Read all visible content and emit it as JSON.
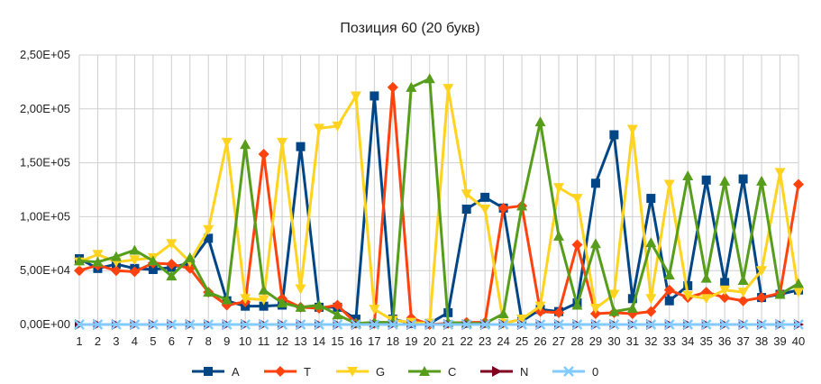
{
  "chart_data": {
    "type": "line",
    "title": "Позиция 60 (20 букв)",
    "xlabel": "",
    "ylabel": "",
    "x": [
      1,
      2,
      3,
      4,
      5,
      6,
      7,
      8,
      9,
      10,
      11,
      12,
      13,
      14,
      15,
      16,
      17,
      18,
      19,
      20,
      21,
      22,
      23,
      24,
      25,
      26,
      27,
      28,
      29,
      30,
      31,
      32,
      33,
      34,
      35,
      36,
      37,
      38,
      39,
      40
    ],
    "ylim": [
      0,
      250000
    ],
    "yticks": [
      0,
      50000,
      100000,
      150000,
      200000,
      250000
    ],
    "ytick_labels": [
      "0,00E+00",
      "5,00E+04",
      "1,00E+05",
      "1,50E+05",
      "2,00E+05",
      "2,50E+05"
    ],
    "grid": true,
    "legend_position": "bottom",
    "series": [
      {
        "name": "A",
        "color": "#004586",
        "marker": "square",
        "values": [
          61000,
          52000,
          56000,
          52000,
          51000,
          53000,
          57000,
          80000,
          22000,
          17000,
          17000,
          18000,
          165000,
          16000,
          16000,
          5000,
          212000,
          5000,
          1000,
          1000,
          11000,
          107000,
          118000,
          108000,
          3000,
          14000,
          12000,
          20000,
          131000,
          176000,
          24000,
          117000,
          22000,
          36000,
          134000,
          39000,
          135000,
          25000,
          28000,
          32000
        ]
      },
      {
        "name": "T",
        "color": "#ff420e",
        "marker": "diamond",
        "values": [
          50000,
          55000,
          50000,
          49000,
          57000,
          56000,
          52000,
          30000,
          18000,
          21000,
          158000,
          24000,
          16000,
          15000,
          18000,
          1000,
          1000,
          220000,
          6000,
          0,
          1000,
          2000,
          2000,
          108000,
          110000,
          12000,
          11000,
          74000,
          10000,
          11000,
          10000,
          12000,
          32000,
          25000,
          30000,
          25000,
          22000,
          25000,
          29000,
          130000
        ]
      },
      {
        "name": "G",
        "color": "#ffd320",
        "marker": "triangle-down",
        "values": [
          58000,
          65000,
          58000,
          60000,
          62000,
          75000,
          58000,
          88000,
          169000,
          24000,
          23000,
          169000,
          33000,
          182000,
          184000,
          212000,
          14000,
          4000,
          2000,
          1000,
          219000,
          121000,
          107000,
          1000,
          5000,
          17000,
          127000,
          117000,
          15000,
          28000,
          181000,
          24000,
          130000,
          27000,
          24000,
          32000,
          30000,
          50000,
          141000,
          30000
        ]
      },
      {
        "name": "C",
        "color": "#579d1c",
        "marker": "triangle-up",
        "values": [
          59000,
          58000,
          63000,
          69000,
          59000,
          45000,
          62000,
          30000,
          23000,
          167000,
          32000,
          20000,
          16000,
          18000,
          9000,
          1000,
          2000,
          2000,
          220000,
          228000,
          2000,
          1000,
          1000,
          10000,
          110000,
          188000,
          82000,
          18000,
          75000,
          12000,
          15000,
          76000,
          46000,
          138000,
          43000,
          133000,
          41000,
          133000,
          28000,
          38000
        ]
      },
      {
        "name": "N",
        "color": "#7e0021",
        "marker": "triangle-right",
        "values": [
          0,
          0,
          0,
          0,
          0,
          0,
          0,
          0,
          0,
          0,
          0,
          0,
          0,
          0,
          0,
          0,
          0,
          0,
          0,
          0,
          0,
          0,
          0,
          0,
          0,
          0,
          0,
          0,
          0,
          0,
          0,
          0,
          0,
          0,
          0,
          0,
          0,
          0,
          0,
          0
        ]
      },
      {
        "name": "0",
        "color": "#83caff",
        "marker": "x",
        "values": [
          0,
          0,
          0,
          0,
          0,
          0,
          0,
          0,
          0,
          0,
          0,
          0,
          0,
          0,
          0,
          0,
          0,
          0,
          0,
          0,
          0,
          0,
          0,
          0,
          0,
          0,
          0,
          0,
          0,
          0,
          0,
          0,
          0,
          0,
          0,
          0,
          0,
          0,
          0,
          0
        ]
      }
    ]
  }
}
